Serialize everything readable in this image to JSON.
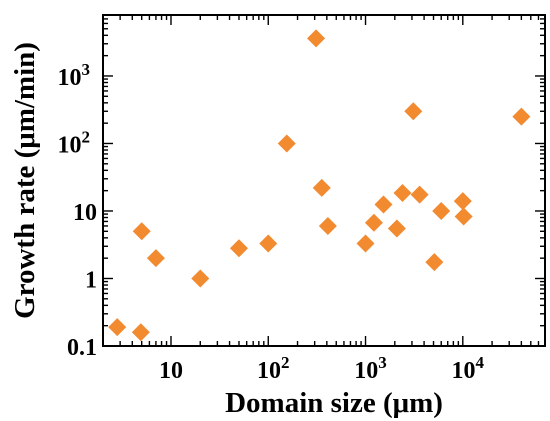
{
  "chart_data": {
    "type": "scatter",
    "title": "",
    "xlabel": "Domain size (μm)",
    "ylabel": "Growth rate (μm/min)",
    "xscale": "log",
    "yscale": "log",
    "xlim": [
      2,
      70000
    ],
    "ylim": [
      0.1,
      8000
    ],
    "x_ticks": [
      {
        "value": 10,
        "base": "10",
        "exp": ""
      },
      {
        "value": 100,
        "base": "10",
        "exp": "2"
      },
      {
        "value": 1000,
        "base": "10",
        "exp": "3"
      },
      {
        "value": 10000,
        "base": "10",
        "exp": "4"
      }
    ],
    "y_ticks": [
      {
        "value": 0.1,
        "base": "0.1",
        "exp": ""
      },
      {
        "value": 1,
        "base": "1",
        "exp": ""
      },
      {
        "value": 10,
        "base": "10",
        "exp": ""
      },
      {
        "value": 100,
        "base": "10",
        "exp": "2"
      },
      {
        "value": 1000,
        "base": "10",
        "exp": "3"
      }
    ],
    "grid": false,
    "marker": "diamond",
    "marker_color": "#f28a30",
    "series": [
      {
        "points": [
          {
            "x": 2.8,
            "y": 0.19
          },
          {
            "x": 4.9,
            "y": 0.16
          },
          {
            "x": 5.0,
            "y": 5.0
          },
          {
            "x": 7.0,
            "y": 2.0
          },
          {
            "x": 20,
            "y": 1.0
          },
          {
            "x": 50,
            "y": 2.8
          },
          {
            "x": 100,
            "y": 3.3
          },
          {
            "x": 155,
            "y": 100
          },
          {
            "x": 310,
            "y": 3600
          },
          {
            "x": 355,
            "y": 22
          },
          {
            "x": 410,
            "y": 6.0
          },
          {
            "x": 1000,
            "y": 3.3
          },
          {
            "x": 1220,
            "y": 6.7
          },
          {
            "x": 1530,
            "y": 12.5
          },
          {
            "x": 2100,
            "y": 5.5
          },
          {
            "x": 2400,
            "y": 18.5
          },
          {
            "x": 3100,
            "y": 300
          },
          {
            "x": 3600,
            "y": 17.5
          },
          {
            "x": 5100,
            "y": 1.75
          },
          {
            "x": 6000,
            "y": 10
          },
          {
            "x": 10000,
            "y": 14
          },
          {
            "x": 10200,
            "y": 8.3
          },
          {
            "x": 40000,
            "y": 250
          }
        ]
      }
    ]
  }
}
